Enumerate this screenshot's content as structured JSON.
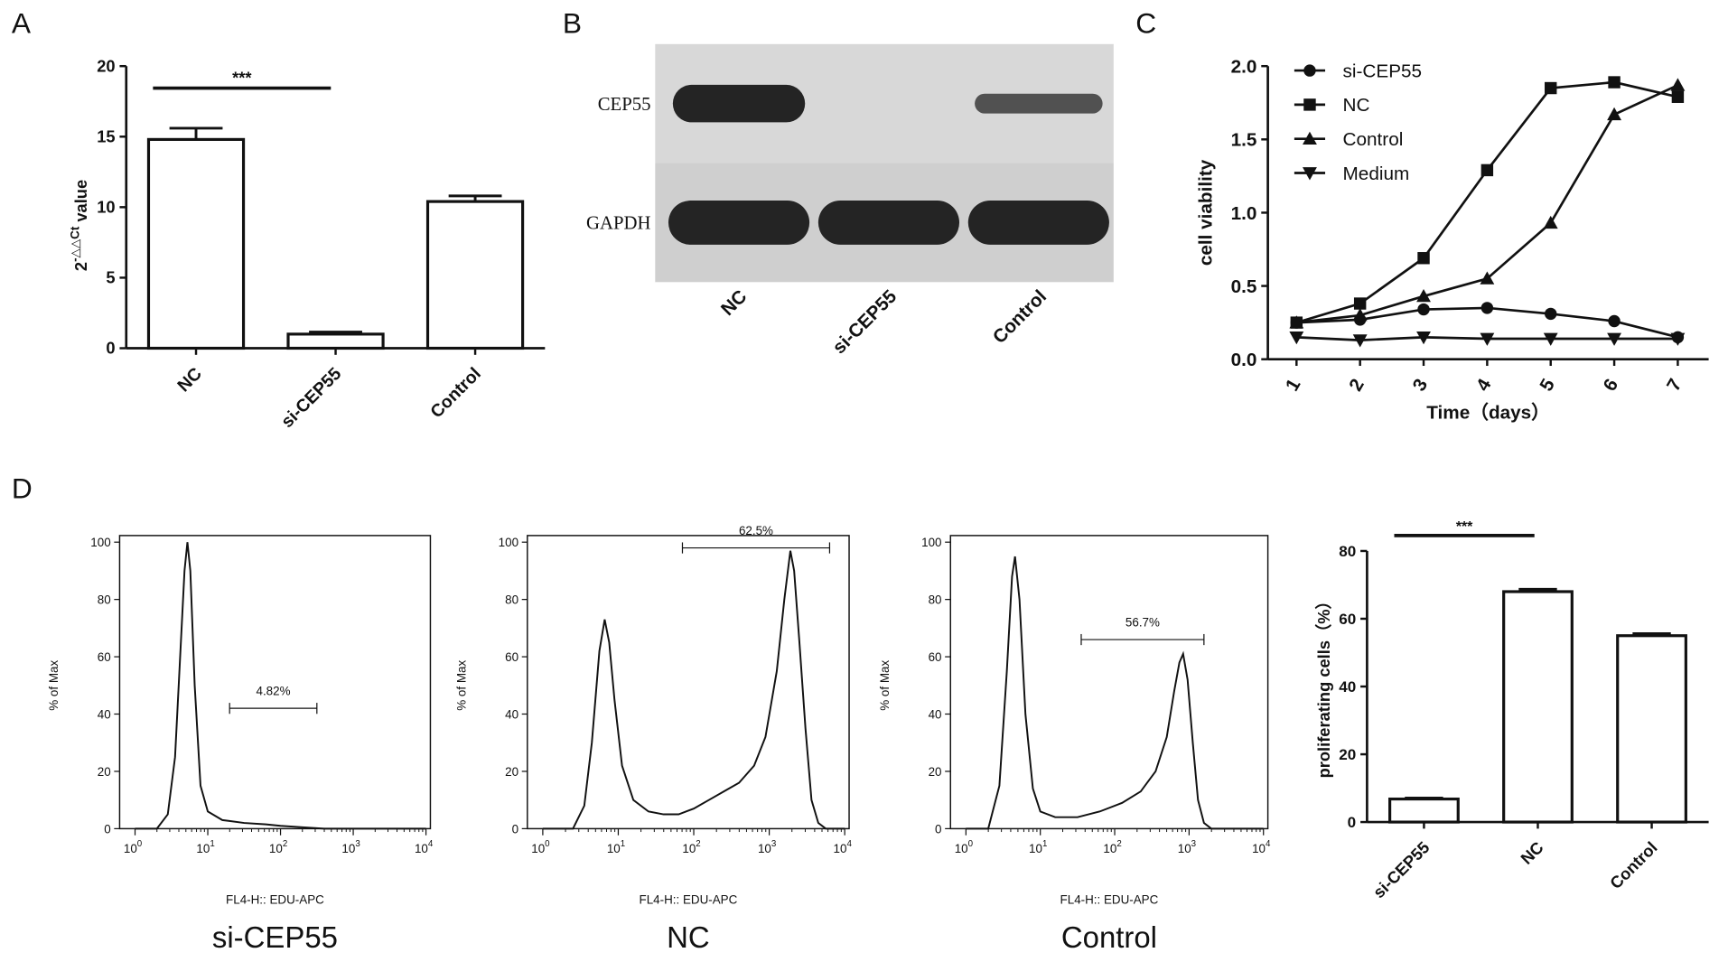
{
  "panels": {
    "a": "A",
    "b": "B",
    "c": "C",
    "d": "D"
  },
  "colors": {
    "ink": "#111111",
    "blot_bg": "#d9d9d9",
    "band": "#1a1a1a",
    "background": "#ffffff"
  },
  "chart_data": [
    {
      "type": "bar",
      "panel": "A",
      "categories": [
        "NC",
        "si-CEP55",
        "Control"
      ],
      "values": [
        14.8,
        1.0,
        10.4
      ],
      "errors": [
        0.8,
        0.15,
        0.4
      ],
      "ylabel_base": "2",
      "ylabel_exp": "-△△Ct",
      "ylabel_rest": " value",
      "ylim": [
        0,
        20
      ],
      "yticks": [
        0,
        5,
        10,
        15,
        20
      ],
      "significance": {
        "from": "NC",
        "to": "si-CEP55",
        "label": "***"
      }
    },
    {
      "type": "blot",
      "panel": "B",
      "rows": [
        {
          "label": "CEP55",
          "intensity": [
            1.0,
            0.0,
            0.6
          ]
        },
        {
          "label": "GAPDH",
          "intensity": [
            1.0,
            1.0,
            1.0
          ]
        }
      ],
      "lanes": [
        "NC",
        "si-CEP55",
        "Control"
      ]
    },
    {
      "type": "line",
      "panel": "C",
      "x": [
        1,
        2,
        3,
        4,
        5,
        6,
        7
      ],
      "xlabel": "Time（days）",
      "ylabel": "cell viability",
      "ylim": [
        0,
        2.0
      ],
      "yticks": [
        "0.0",
        "0.5",
        "1.0",
        "1.5",
        "2.0"
      ],
      "legend_position": "top-left",
      "series": [
        {
          "name": "si-CEP55",
          "marker": "circle",
          "values": [
            0.25,
            0.27,
            0.34,
            0.35,
            0.31,
            0.26,
            0.15
          ]
        },
        {
          "name": "NC",
          "marker": "square",
          "values": [
            0.25,
            0.38,
            0.69,
            1.29,
            1.85,
            1.89,
            1.79
          ]
        },
        {
          "name": "Control",
          "marker": "triangle-up",
          "values": [
            0.25,
            0.3,
            0.43,
            0.55,
            0.93,
            1.67,
            1.87
          ]
        },
        {
          "name": "Medium",
          "marker": "triangle-down",
          "values": [
            0.15,
            0.13,
            0.15,
            0.14,
            0.14,
            0.14,
            0.14
          ]
        }
      ]
    },
    {
      "type": "histogram",
      "panel": "D",
      "title": "si-CEP55",
      "xlabel": "FL4-H:: EDU-APC",
      "ylabel": "% of Max",
      "ylim": [
        0,
        100
      ],
      "yticks": [
        0,
        20,
        40,
        60,
        80,
        100
      ],
      "xticks": [
        {
          "base": "10",
          "exp": "0"
        },
        {
          "base": "10",
          "exp": "1"
        },
        {
          "base": "10",
          "exp": "2"
        },
        {
          "base": "10",
          "exp": "3"
        },
        {
          "base": "10",
          "exp": "4"
        }
      ],
      "curve": [
        [
          0,
          0
        ],
        [
          0.3,
          0
        ],
        [
          0.45,
          5
        ],
        [
          0.55,
          25
        ],
        [
          0.62,
          60
        ],
        [
          0.68,
          90
        ],
        [
          0.72,
          100
        ],
        [
          0.76,
          90
        ],
        [
          0.82,
          50
        ],
        [
          0.9,
          15
        ],
        [
          1.0,
          6
        ],
        [
          1.2,
          3
        ],
        [
          1.5,
          2
        ],
        [
          1.8,
          1.5
        ],
        [
          2.0,
          1
        ],
        [
          2.3,
          0.5
        ],
        [
          2.6,
          0
        ],
        [
          4,
          0
        ]
      ],
      "gate": {
        "label": "4.82%",
        "from": 1.3,
        "to": 2.5,
        "level": 42
      }
    },
    {
      "type": "histogram",
      "panel": "D",
      "title": "NC",
      "xlabel": "FL4-H:: EDU-APC",
      "ylabel": "% of Max",
      "ylim": [
        0,
        100
      ],
      "yticks": [
        0,
        20,
        40,
        60,
        80,
        100
      ],
      "xticks": [
        {
          "base": "10",
          "exp": "0"
        },
        {
          "base": "10",
          "exp": "1"
        },
        {
          "base": "10",
          "exp": "2"
        },
        {
          "base": "10",
          "exp": "3"
        },
        {
          "base": "10",
          "exp": "4"
        }
      ],
      "curve": [
        [
          0,
          0
        ],
        [
          0.4,
          0
        ],
        [
          0.55,
          8
        ],
        [
          0.65,
          30
        ],
        [
          0.75,
          62
        ],
        [
          0.82,
          73
        ],
        [
          0.88,
          65
        ],
        [
          0.95,
          45
        ],
        [
          1.05,
          22
        ],
        [
          1.2,
          10
        ],
        [
          1.4,
          6
        ],
        [
          1.6,
          5
        ],
        [
          1.8,
          5
        ],
        [
          2.0,
          7
        ],
        [
          2.2,
          10
        ],
        [
          2.4,
          13
        ],
        [
          2.6,
          16
        ],
        [
          2.8,
          22
        ],
        [
          2.95,
          32
        ],
        [
          3.1,
          55
        ],
        [
          3.2,
          80
        ],
        [
          3.28,
          97
        ],
        [
          3.33,
          90
        ],
        [
          3.4,
          65
        ],
        [
          3.48,
          35
        ],
        [
          3.56,
          10
        ],
        [
          3.65,
          2
        ],
        [
          3.75,
          0
        ],
        [
          4,
          0
        ]
      ],
      "gate": {
        "label": "62.5%",
        "from": 1.85,
        "to": 3.8,
        "level": 98
      }
    },
    {
      "type": "histogram",
      "panel": "D",
      "title": "Control",
      "xlabel": "FL4-H:: EDU-APC",
      "ylabel": "% of Max",
      "ylim": [
        0,
        100
      ],
      "yticks": [
        0,
        20,
        40,
        60,
        80,
        100
      ],
      "xticks": [
        {
          "base": "10",
          "exp": "0"
        },
        {
          "base": "10",
          "exp": "1"
        },
        {
          "base": "10",
          "exp": "2"
        },
        {
          "base": "10",
          "exp": "3"
        },
        {
          "base": "10",
          "exp": "4"
        }
      ],
      "curve": [
        [
          0,
          0
        ],
        [
          0.3,
          0
        ],
        [
          0.45,
          15
        ],
        [
          0.55,
          55
        ],
        [
          0.62,
          88
        ],
        [
          0.66,
          95
        ],
        [
          0.72,
          80
        ],
        [
          0.8,
          40
        ],
        [
          0.9,
          14
        ],
        [
          1.0,
          6
        ],
        [
          1.2,
          4
        ],
        [
          1.5,
          4
        ],
        [
          1.8,
          6
        ],
        [
          2.1,
          9
        ],
        [
          2.35,
          13
        ],
        [
          2.55,
          20
        ],
        [
          2.7,
          32
        ],
        [
          2.8,
          48
        ],
        [
          2.87,
          58
        ],
        [
          2.92,
          61
        ],
        [
          2.98,
          52
        ],
        [
          3.05,
          30
        ],
        [
          3.12,
          10
        ],
        [
          3.2,
          2
        ],
        [
          3.3,
          0
        ],
        [
          4,
          0
        ]
      ],
      "gate": {
        "label": "56.7%",
        "from": 1.55,
        "to": 3.2,
        "level": 66
      }
    },
    {
      "type": "bar",
      "panel": "D",
      "categories": [
        "si-CEP55",
        "NC",
        "Control"
      ],
      "values": [
        6.8,
        68,
        55
      ],
      "errors": [
        0.3,
        0.7,
        0.6
      ],
      "ylabel": "proliferating cells（%）",
      "ylim": [
        0,
        80
      ],
      "yticks": [
        0,
        20,
        40,
        60,
        80
      ],
      "significance": {
        "from": "si-CEP55",
        "to": "NC",
        "label": "***"
      }
    }
  ]
}
